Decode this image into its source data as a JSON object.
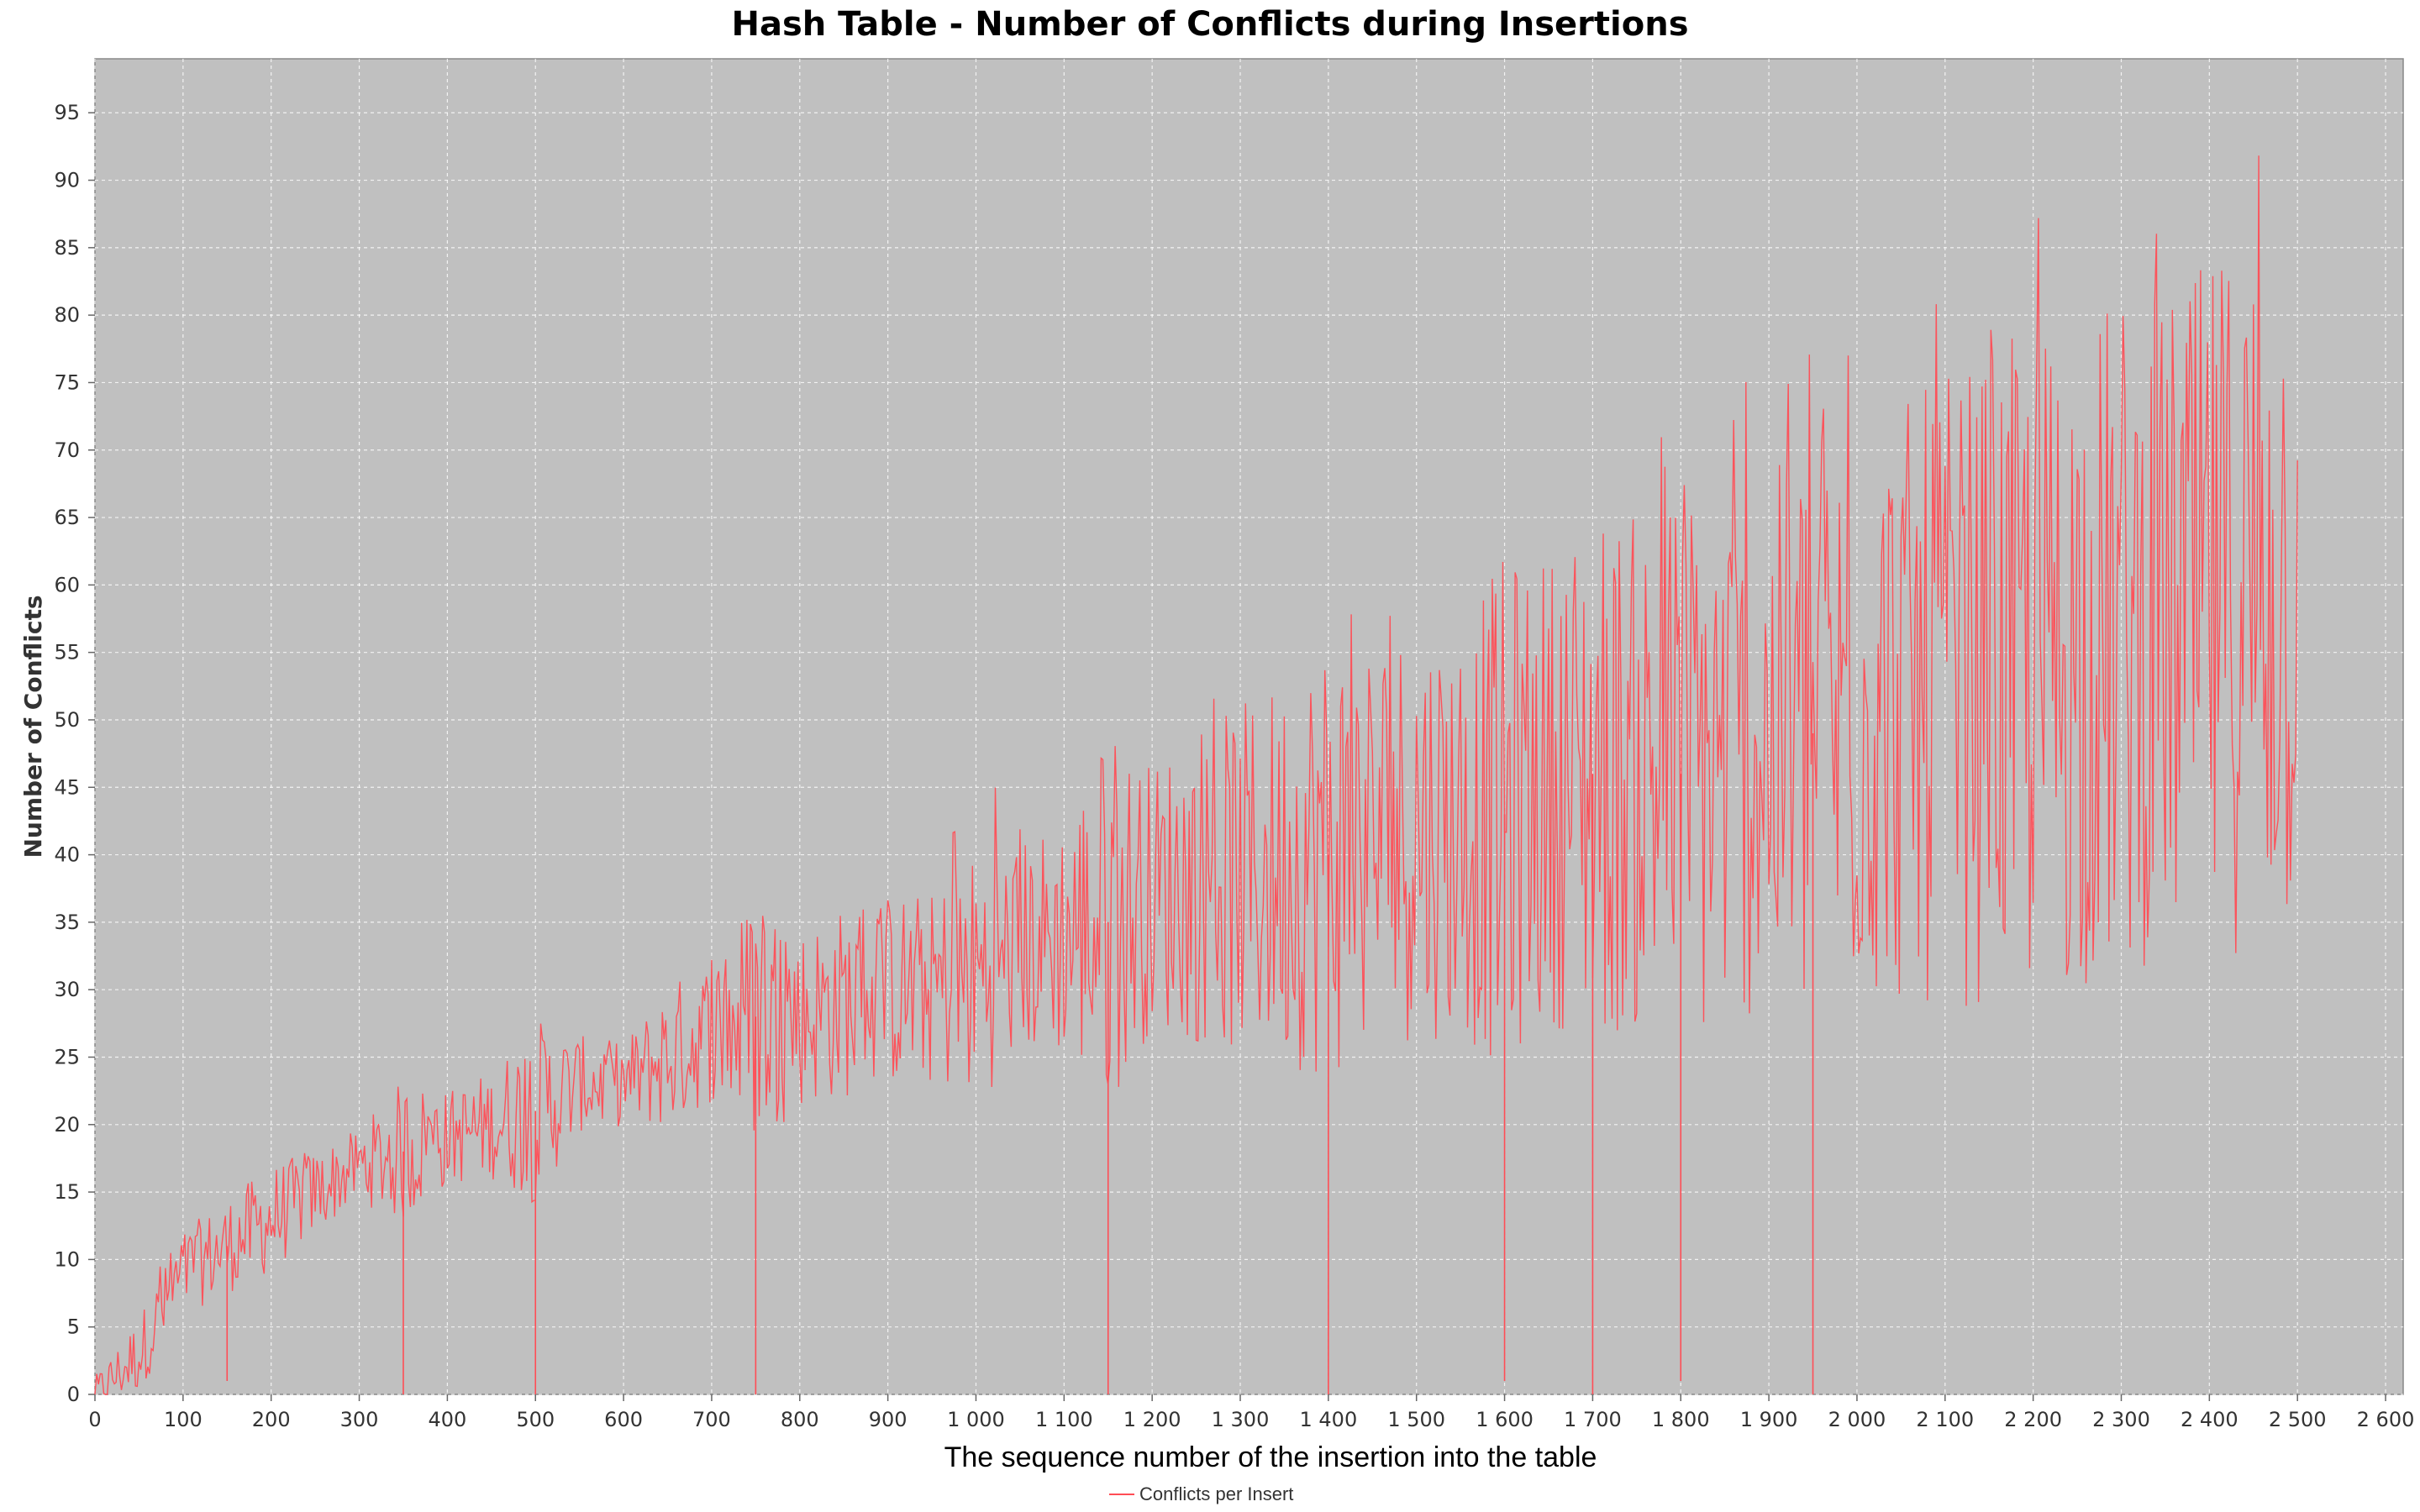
{
  "chart_data": {
    "type": "line",
    "title": "Hash Table - Number of Conflicts during Insertions",
    "xlabel": "The sequence number of the insertion into the table",
    "ylabel": "Number of Conflicts",
    "xlim": [
      0,
      2620
    ],
    "ylim": [
      0,
      99
    ],
    "x_ticks": [
      {
        "value": 0,
        "label": "0"
      },
      {
        "value": 100,
        "label": "100"
      },
      {
        "value": 200,
        "label": "200"
      },
      {
        "value": 300,
        "label": "300"
      },
      {
        "value": 400,
        "label": "400"
      },
      {
        "value": 500,
        "label": "500"
      },
      {
        "value": 600,
        "label": "600"
      },
      {
        "value": 700,
        "label": "700"
      },
      {
        "value": 800,
        "label": "800"
      },
      {
        "value": 900,
        "label": "900"
      },
      {
        "value": 1000,
        "label": "1 000"
      },
      {
        "value": 1100,
        "label": "1 100"
      },
      {
        "value": 1200,
        "label": "1 200"
      },
      {
        "value": 1300,
        "label": "1 300"
      },
      {
        "value": 1400,
        "label": "1 400"
      },
      {
        "value": 1500,
        "label": "1 500"
      },
      {
        "value": 1600,
        "label": "1 600"
      },
      {
        "value": 1700,
        "label": "1 700"
      },
      {
        "value": 1800,
        "label": "1 800"
      },
      {
        "value": 1900,
        "label": "1 900"
      },
      {
        "value": 2000,
        "label": "2 000"
      },
      {
        "value": 2100,
        "label": "2 100"
      },
      {
        "value": 2200,
        "label": "2 200"
      },
      {
        "value": 2300,
        "label": "2 300"
      },
      {
        "value": 2400,
        "label": "2 400"
      },
      {
        "value": 2500,
        "label": "2 500"
      },
      {
        "value": 2600,
        "label": "2 600"
      }
    ],
    "y_ticks": [
      {
        "value": 0,
        "label": "0"
      },
      {
        "value": 5,
        "label": "5"
      },
      {
        "value": 10,
        "label": "10"
      },
      {
        "value": 15,
        "label": "15"
      },
      {
        "value": 20,
        "label": "20"
      },
      {
        "value": 25,
        "label": "25"
      },
      {
        "value": 30,
        "label": "30"
      },
      {
        "value": 35,
        "label": "35"
      },
      {
        "value": 40,
        "label": "40"
      },
      {
        "value": 45,
        "label": "45"
      },
      {
        "value": 50,
        "label": "50"
      },
      {
        "value": 55,
        "label": "55"
      },
      {
        "value": 60,
        "label": "60"
      },
      {
        "value": 65,
        "label": "65"
      },
      {
        "value": 70,
        "label": "70"
      },
      {
        "value": 75,
        "label": "75"
      },
      {
        "value": 80,
        "label": "80"
      },
      {
        "value": 85,
        "label": "85"
      },
      {
        "value": 90,
        "label": "90"
      },
      {
        "value": 95,
        "label": "95"
      }
    ],
    "grid": true,
    "legend_position": "bottom",
    "series": [
      {
        "name": "Conflicts per Insert",
        "color": "#ff4d55",
        "x": [
          0,
          50,
          100,
          150,
          200,
          250,
          300,
          350,
          400,
          450,
          500,
          550,
          600,
          650,
          700,
          750,
          800,
          850,
          900,
          950,
          1000,
          1050,
          1100,
          1150,
          1200,
          1250,
          1300,
          1350,
          1400,
          1450,
          1500,
          1550,
          1600,
          1650,
          1700,
          1750,
          1800,
          1850,
          1900,
          1950,
          2000,
          2050,
          2100,
          2150,
          2200,
          2250,
          2300,
          2350,
          2400,
          2450,
          2500
        ],
        "values": [
          0,
          3,
          9,
          11,
          13,
          15,
          17,
          18,
          19,
          20,
          21,
          23,
          23,
          25,
          27,
          28,
          28,
          29,
          30,
          30,
          31,
          33,
          34,
          35,
          37,
          38,
          38,
          39,
          40,
          41,
          42,
          42,
          43,
          45,
          46,
          46,
          46,
          47,
          48,
          49,
          50,
          51,
          52,
          53,
          54,
          55,
          56,
          57,
          58,
          60,
          60
        ],
        "min": [
          0,
          0,
          1,
          1,
          8,
          12,
          14,
          0,
          15,
          16,
          0,
          20,
          20,
          19,
          22,
          0,
          22,
          23,
          24,
          24,
          26,
          26,
          27,
          0,
          28,
          28,
          29,
          28,
          0,
          29,
          29,
          30,
          1,
          30,
          0,
          31,
          1,
          31,
          32,
          0,
          33,
          33,
          34,
          33,
          33,
          33,
          33,
          34,
          34,
          33,
          35
        ],
        "max": [
          3,
          8,
          12,
          14,
          17,
          19,
          20,
          22,
          23,
          25,
          27,
          28,
          27,
          31,
          34,
          37,
          37,
          39,
          40,
          40,
          47,
          44,
          47,
          50,
          50,
          55,
          58,
          60,
          60,
          64,
          64,
          65,
          66,
          69,
          70,
          74,
          74,
          76,
          76,
          80,
          80,
          83,
          86,
          87,
          89,
          89,
          90,
          88,
          92,
          93,
          94
        ]
      }
    ]
  }
}
